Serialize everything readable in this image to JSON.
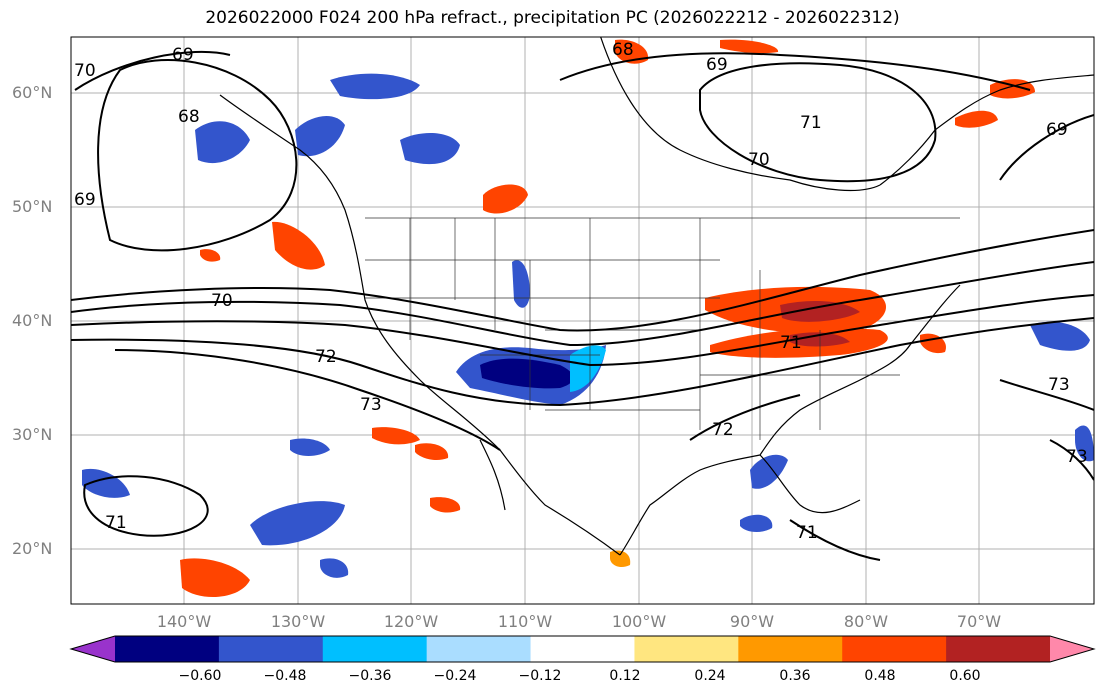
{
  "title": "2026022000 F024 200 hPa refract., precipitation PC (2026022212 - 2026022312)",
  "latitude_labels": [
    "60°N",
    "50°N",
    "40°N",
    "30°N",
    "20°N"
  ],
  "longitude_labels": [
    "140°W",
    "130°W",
    "120°W",
    "110°W",
    "100°W",
    "90°W",
    "80°W",
    "70°W"
  ],
  "contour_labels": [
    "69",
    "68",
    "70",
    "69",
    "68",
    "71",
    "70",
    "69",
    "69",
    "70",
    "72",
    "73",
    "71",
    "72",
    "71",
    "71",
    "73",
    "73"
  ],
  "colorbar": {
    "tick_labels": [
      "−0.60",
      "−0.48",
      "−0.36",
      "−0.24",
      "−0.12",
      "0.12",
      "0.24",
      "0.36",
      "0.48",
      "0.60"
    ],
    "colors": [
      "#9933cc",
      "#000080",
      "#3355cc",
      "#00bfff",
      "#aaddff",
      "#ffffff",
      "#ffe680",
      "#ff9900",
      "#ff4400",
      "#b22222",
      "#ff88aa"
    ]
  }
}
